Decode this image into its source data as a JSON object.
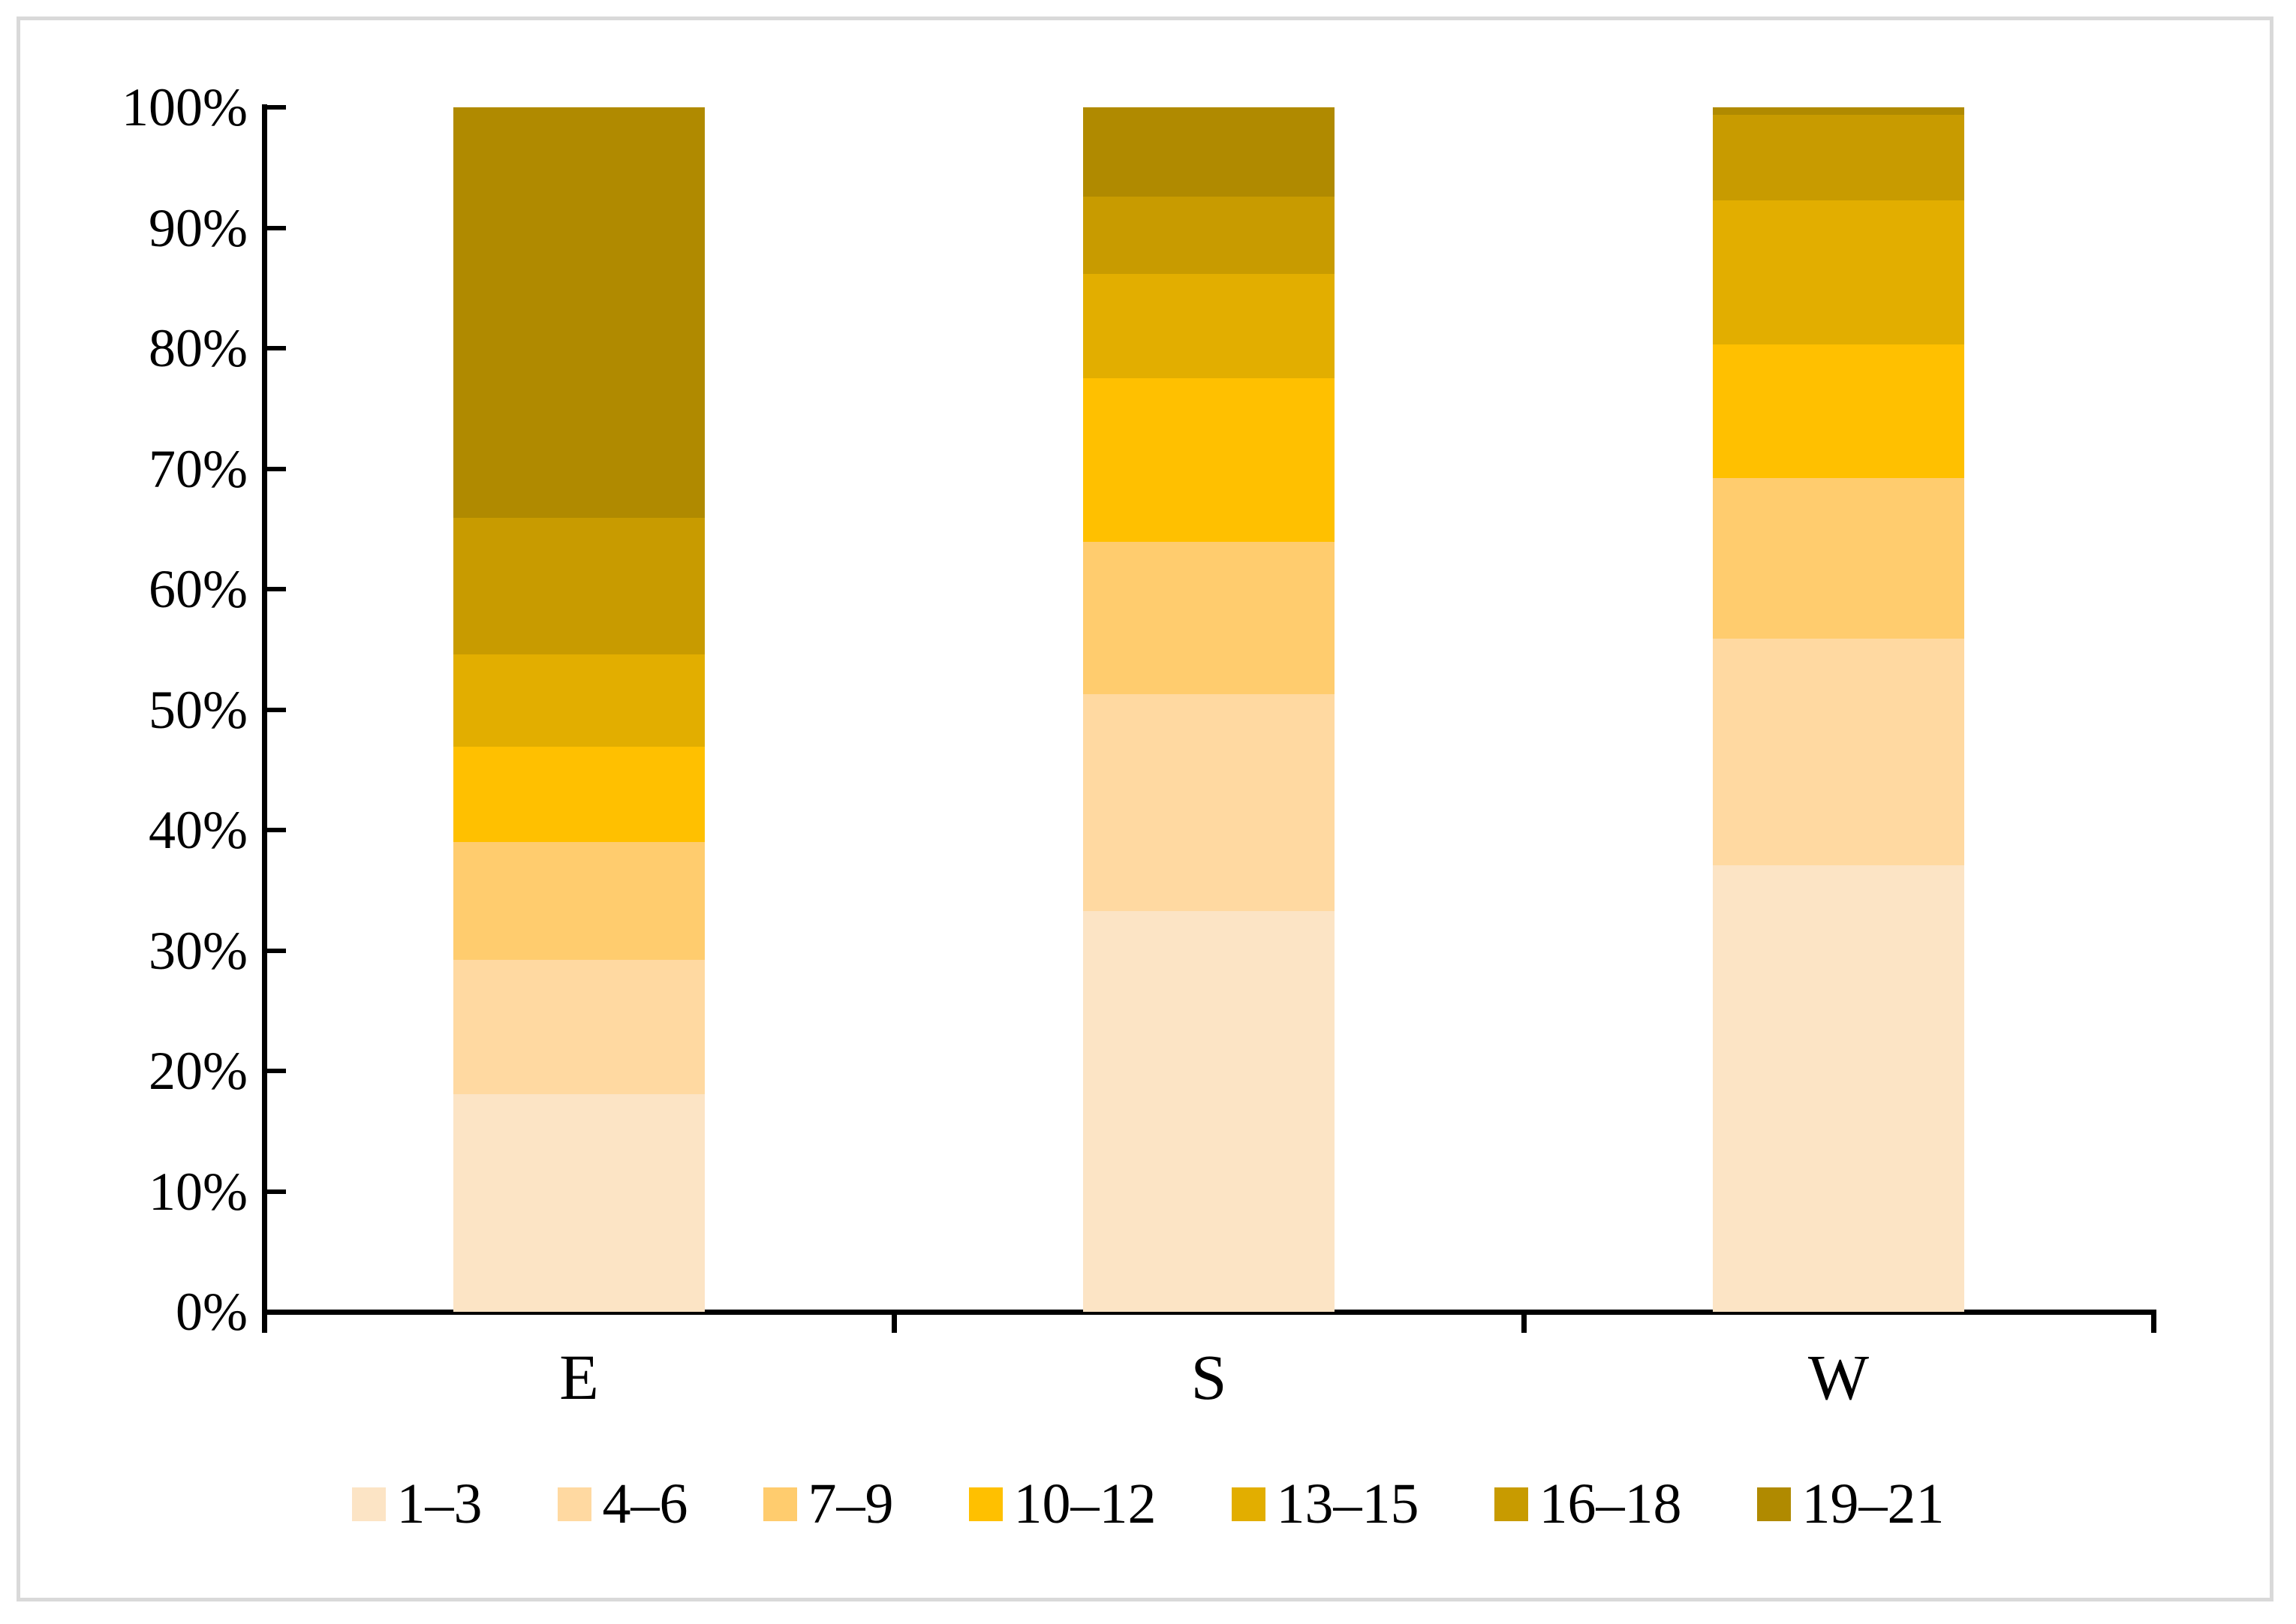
{
  "figure": {
    "background_color": "#FFFFFF",
    "border_color": "#D9D9D9",
    "axis_color": "#000000"
  },
  "chart_data": {
    "type": "bar",
    "stacked": true,
    "percent_stacked": true,
    "title": "",
    "xlabel": "",
    "ylabel": "",
    "grid": false,
    "legend_position": "bottom",
    "categories": [
      "E",
      "S",
      "W"
    ],
    "series": [
      {
        "name": "1–3",
        "color": "#FCE4C5",
        "values": [
          18.1,
          33.3,
          37.1
        ]
      },
      {
        "name": "4–6",
        "color": "#FFD9A1",
        "values": [
          11.1,
          18.0,
          18.8
        ]
      },
      {
        "name": "7–9",
        "color": "#FFCC6E",
        "values": [
          9.8,
          12.6,
          13.3
        ]
      },
      {
        "name": "10–12",
        "color": "#FFC000",
        "values": [
          7.9,
          13.6,
          11.1
        ]
      },
      {
        "name": "13–15",
        "color": "#E2AE00",
        "values": [
          7.7,
          8.7,
          12.0
        ]
      },
      {
        "name": "16–18",
        "color": "#C89B00",
        "values": [
          11.3,
          6.4,
          7.1
        ]
      },
      {
        "name": "19–21",
        "color": "#B08A00",
        "values": [
          34.1,
          7.4,
          0.6
        ]
      }
    ],
    "y_axis": {
      "min": 0,
      "max": 100,
      "tick_step": 10,
      "ticks": [
        "0%",
        "10%",
        "20%",
        "30%",
        "40%",
        "50%",
        "60%",
        "70%",
        "80%",
        "90%",
        "100%"
      ]
    }
  }
}
